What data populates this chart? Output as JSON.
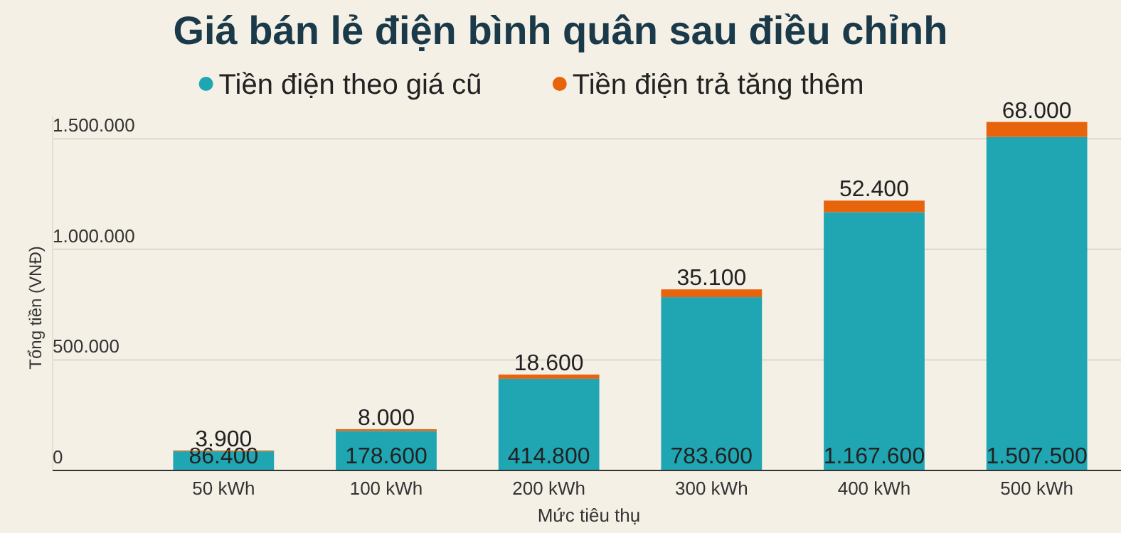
{
  "chart_data": {
    "type": "bar",
    "title": "Giá bán lẻ điện bình quân sau điều chỉnh",
    "xlabel": "Mức tiêu thụ",
    "ylabel": "Tổng tiền (VNĐ)",
    "categories": [
      "50 kWh",
      "100 kWh",
      "200 kWh",
      "300 kWh",
      "400 kWh",
      "500 kWh"
    ],
    "series": [
      {
        "name": "Tiền điện theo giá cũ",
        "color": "#1fa6b2",
        "values": [
          86400,
          178600,
          414800,
          783600,
          1167600,
          1507500
        ],
        "value_labels": [
          "86.400",
          "178.600",
          "414.800",
          "783.600",
          "1.167.600",
          "1.507.500"
        ]
      },
      {
        "name": "Tiền điện trả tăng thêm",
        "color": "#e8640c",
        "values": [
          3900,
          8000,
          18600,
          35100,
          52400,
          68000
        ],
        "value_labels": [
          "3.900",
          "8.000",
          "18.600",
          "35.100",
          "52.400",
          "68.000"
        ]
      }
    ],
    "stacked": true,
    "ylim": [
      0,
      1600000
    ],
    "yticks": [
      {
        "value": 0,
        "label": "0"
      },
      {
        "value": 500000,
        "label": "500.000"
      },
      {
        "value": 1000000,
        "label": "1.000.000"
      },
      {
        "value": 1500000,
        "label": "1.500.000"
      }
    ],
    "grid": "y",
    "legend": "top"
  }
}
